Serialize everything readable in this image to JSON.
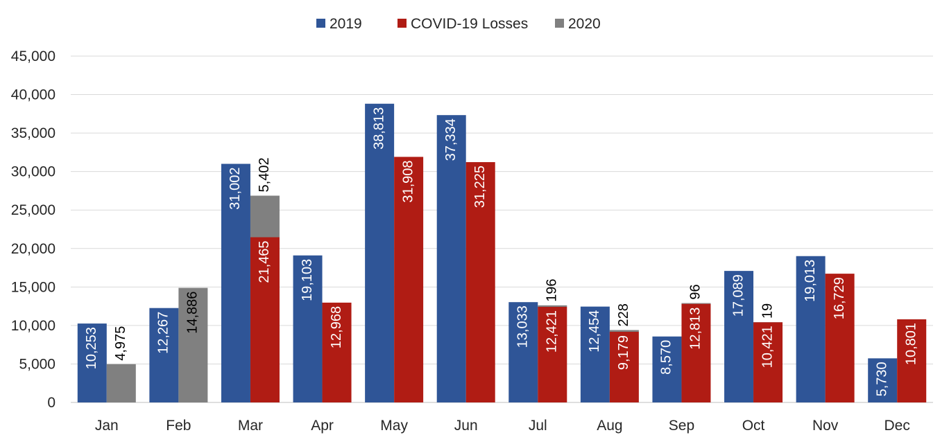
{
  "chart_data": {
    "type": "bar",
    "categories": [
      "Jan",
      "Feb",
      "Mar",
      "Apr",
      "May",
      "Jun",
      "Jul",
      "Aug",
      "Sep",
      "Oct",
      "Nov",
      "Dec"
    ],
    "ylim": [
      0,
      45000
    ],
    "yticks": [
      "0",
      "5,000",
      "10,000",
      "15,000",
      "20,000",
      "25,000",
      "30,000",
      "35,000",
      "40,000",
      "45,000"
    ],
    "ytick_values": [
      0,
      5000,
      10000,
      15000,
      20000,
      25000,
      30000,
      35000,
      40000,
      45000
    ],
    "grid": true,
    "legend_position": "top",
    "series": [
      {
        "name": "2019",
        "color": "#2f5597",
        "values": [
          10253,
          12267,
          31002,
          19103,
          38813,
          37334,
          13033,
          12454,
          8570,
          17089,
          19013,
          5730
        ],
        "labels": [
          "10,253",
          "12,267",
          "31,002",
          "19,103",
          "38,813",
          "37,334",
          "13,033",
          "12,454",
          "8,570",
          "17,089",
          "19,013",
          "5,730"
        ]
      },
      {
        "name": "COVID-19 Losses",
        "color": "#b01c14",
        "values": [
          0,
          0,
          21465,
          12968,
          31908,
          31225,
          12421,
          9179,
          12813,
          10421,
          16729,
          10801
        ],
        "labels": [
          "",
          "",
          "21,465",
          "12,968",
          "31,908",
          "31,225",
          "12,421",
          "9,179",
          "12,813",
          "10,421",
          "16,729",
          "10,801"
        ]
      },
      {
        "name": "2020",
        "color": "#808080",
        "values": [
          4975,
          14886,
          5402,
          0,
          0,
          0,
          196,
          228,
          96,
          19,
          0,
          0
        ],
        "labels": [
          "4,975",
          "14,886",
          "5,402",
          "",
          "",
          "",
          "196",
          "228",
          "96",
          "19",
          "",
          ""
        ]
      }
    ]
  }
}
